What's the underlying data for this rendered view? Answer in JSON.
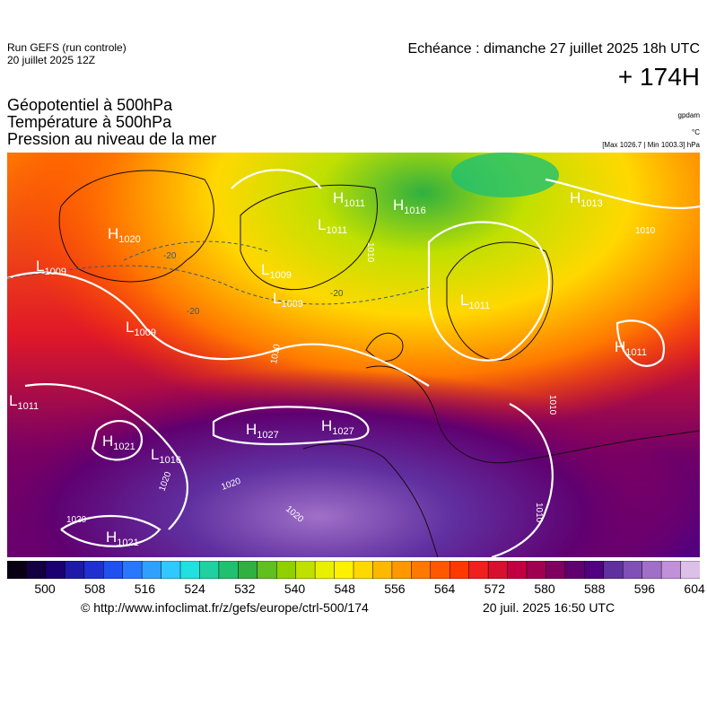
{
  "header": {
    "run_line1": "Run GEFS (run controle)",
    "run_line2": "20 juillet 2025 12Z",
    "echeance": "Echéance : dimanche 27 juillet 2025 18h UTC",
    "hour": "+ 174H"
  },
  "titles": [
    "Géopotentiel à 500hPa",
    "Température à 500hPa",
    "Pression au niveau de la mer"
  ],
  "units": {
    "geop": "gpdam",
    "temp": "°C",
    "pressure": "[Max 1026.7 | Min 1003.3] hPa"
  },
  "scale": {
    "ticks": [
      "500",
      "508",
      "516",
      "524",
      "532",
      "540",
      "548",
      "556",
      "564",
      "572",
      "580",
      "588",
      "596",
      "604"
    ],
    "colors": [
      "#0a0014",
      "#140040",
      "#1a0070",
      "#1e1aa8",
      "#2030d0",
      "#2050f0",
      "#2878ff",
      "#30a0ff",
      "#30c8ff",
      "#20e0e0",
      "#20d0a0",
      "#20c070",
      "#30b040",
      "#60c020",
      "#90d000",
      "#c0e000",
      "#e8f000",
      "#fff000",
      "#ffd800",
      "#ffb800",
      "#ff9800",
      "#ff7800",
      "#ff5800",
      "#ff3800",
      "#f02020",
      "#d81030",
      "#c00040",
      "#a00050",
      "#800060",
      "#600070",
      "#500080",
      "#6030a0",
      "#8050b8",
      "#a070c8",
      "#c090d8",
      "#dcc0e8"
    ]
  },
  "map_labels": [
    {
      "k": "H",
      "sub": "1020"
    },
    {
      "k": "L",
      "sub": "1009"
    },
    {
      "k": "L",
      "sub": "1009"
    },
    {
      "k": "H",
      "sub": "1011"
    },
    {
      "k": "H",
      "sub": "1016"
    },
    {
      "k": "L",
      "sub": "1011"
    },
    {
      "k": "L",
      "sub": "1009"
    },
    {
      "k": "L",
      "sub": "1009"
    },
    {
      "k": "L",
      "sub": "1011"
    },
    {
      "k": "H",
      "sub": "1013"
    },
    {
      "k": "H",
      "sub": "1011"
    },
    {
      "k": "H",
      "sub": "1027"
    },
    {
      "k": "H",
      "sub": "1027"
    },
    {
      "k": "H",
      "sub": "1021"
    },
    {
      "k": "L",
      "sub": "1016"
    },
    {
      "k": "H",
      "sub": "1021"
    },
    {
      "k": "L",
      "sub": "1011"
    }
  ],
  "isobar_labels": [
    "1020",
    "1020",
    "1020",
    "1020",
    "1010",
    "1010",
    "1010",
    "1010",
    "1010"
  ],
  "temp_labels": [
    "-20",
    "-20",
    "-20"
  ],
  "footer": {
    "url": "© http://www.infoclimat.fr/z/gefs/europe/ctrl-500/174",
    "date": "20 juil. 2025 16:50 UTC"
  }
}
